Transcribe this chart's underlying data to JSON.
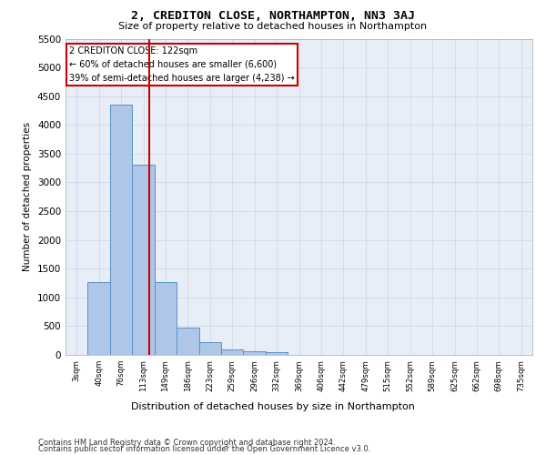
{
  "title1": "2, CREDITON CLOSE, NORTHAMPTON, NN3 3AJ",
  "title2": "Size of property relative to detached houses in Northampton",
  "xlabel": "Distribution of detached houses by size in Northampton",
  "ylabel": "Number of detached properties",
  "categories": [
    "3sqm",
    "40sqm",
    "76sqm",
    "113sqm",
    "149sqm",
    "186sqm",
    "223sqm",
    "259sqm",
    "296sqm",
    "332sqm",
    "369sqm",
    "406sqm",
    "442sqm",
    "479sqm",
    "515sqm",
    "552sqm",
    "589sqm",
    "625sqm",
    "662sqm",
    "698sqm",
    "735sqm"
  ],
  "bar_values": [
    0,
    1260,
    4350,
    3310,
    1260,
    480,
    215,
    95,
    65,
    50,
    0,
    0,
    0,
    0,
    0,
    0,
    0,
    0,
    0,
    0,
    0
  ],
  "bar_color": "#aec6e8",
  "bar_edge_color": "#5a8fc4",
  "property_line_label": "2 CREDITON CLOSE: 122sqm",
  "annotation_line1": "← 60% of detached houses are smaller (6,600)",
  "annotation_line2": "39% of semi-detached houses are larger (4,238) →",
  "ylim": [
    0,
    5500
  ],
  "yticks": [
    0,
    500,
    1000,
    1500,
    2000,
    2500,
    3000,
    3500,
    4000,
    4500,
    5000,
    5500
  ],
  "grid_color": "#d0d8e8",
  "bg_color": "#e8eef8",
  "box_color": "#cc0000",
  "vline_color": "#cc0000",
  "bin_starts": [
    3,
    40,
    76,
    113,
    149,
    186,
    223,
    259,
    296,
    332,
    369,
    406,
    442,
    479,
    515,
    552,
    589,
    625,
    662,
    698,
    735
  ],
  "property_size": 122,
  "property_bin_idx": 3,
  "footer1": "Contains HM Land Registry data © Crown copyright and database right 2024.",
  "footer2": "Contains public sector information licensed under the Open Government Licence v3.0."
}
